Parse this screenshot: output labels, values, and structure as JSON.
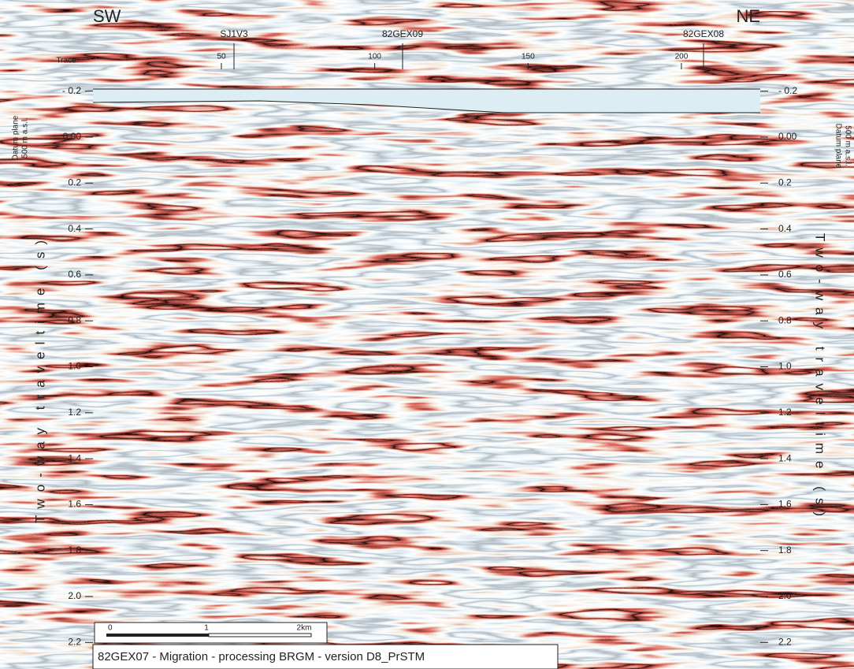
{
  "directions": {
    "left": "SW",
    "right": "NE"
  },
  "trace_axis": {
    "title": "Trace",
    "ticks": [
      50,
      100,
      150,
      200
    ]
  },
  "wells": [
    "SJ1V3",
    "82GEX09",
    "82GEX08"
  ],
  "time_axis": {
    "title": "Two-way traveltime (s)",
    "ticks": [
      {
        "value": -0.2,
        "label": "- 0.2"
      },
      {
        "value": 0,
        "label": "0.00"
      },
      0.2,
      0.4,
      0.6,
      0.8,
      {
        "value": 1,
        "label": "1.0"
      },
      1.2,
      1.4,
      1.6,
      1.8,
      {
        "value": 2,
        "label": "2.0"
      },
      2.2
    ]
  },
  "datum": {
    "line1": "Datum plane",
    "line2": "500 m a.s.l."
  },
  "scale_bar": {
    "labels": [
      "0",
      "1",
      "2km"
    ]
  },
  "caption": "82GEX07 - Migration - processing BRGM - version D8_PrSTM"
}
